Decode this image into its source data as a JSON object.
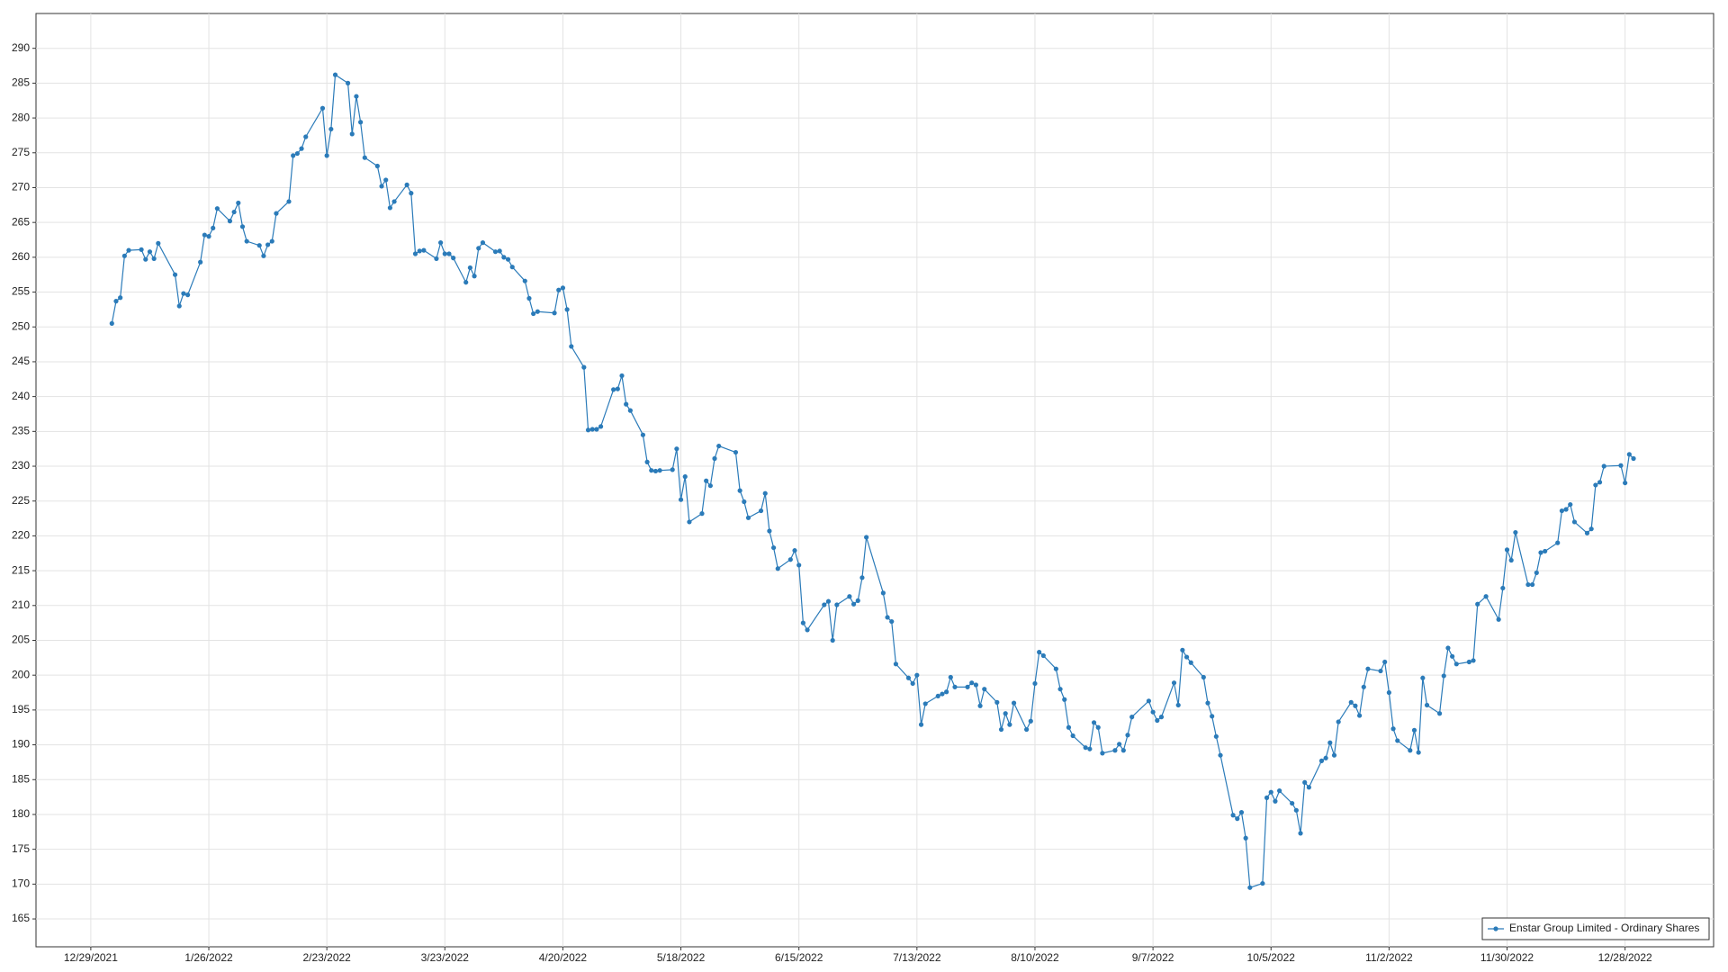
{
  "chart_data": {
    "type": "line",
    "x": [
      "2022-01-03",
      "2022-01-04",
      "2022-01-05",
      "2022-01-06",
      "2022-01-07",
      "2022-01-10",
      "2022-01-11",
      "2022-01-12",
      "2022-01-13",
      "2022-01-14",
      "2022-01-18",
      "2022-01-19",
      "2022-01-20",
      "2022-01-21",
      "2022-01-24",
      "2022-01-25",
      "2022-01-26",
      "2022-01-27",
      "2022-01-28",
      "2022-01-31",
      "2022-02-01",
      "2022-02-02",
      "2022-02-03",
      "2022-02-04",
      "2022-02-07",
      "2022-02-08",
      "2022-02-09",
      "2022-02-10",
      "2022-02-11",
      "2022-02-14",
      "2022-02-15",
      "2022-02-16",
      "2022-02-17",
      "2022-02-18",
      "2022-02-22",
      "2022-02-23",
      "2022-02-24",
      "2022-02-25",
      "2022-02-28",
      "2022-03-01",
      "2022-03-02",
      "2022-03-03",
      "2022-03-04",
      "2022-03-07",
      "2022-03-08",
      "2022-03-09",
      "2022-03-10",
      "2022-03-11",
      "2022-03-14",
      "2022-03-15",
      "2022-03-16",
      "2022-03-17",
      "2022-03-18",
      "2022-03-21",
      "2022-03-22",
      "2022-03-23",
      "2022-03-24",
      "2022-03-25",
      "2022-03-28",
      "2022-03-29",
      "2022-03-30",
      "2022-03-31",
      "2022-04-01",
      "2022-04-04",
      "2022-04-05",
      "2022-04-06",
      "2022-04-07",
      "2022-04-08",
      "2022-04-11",
      "2022-04-12",
      "2022-04-13",
      "2022-04-14",
      "2022-04-18",
      "2022-04-19",
      "2022-04-20",
      "2022-04-21",
      "2022-04-22",
      "2022-04-25",
      "2022-04-26",
      "2022-04-27",
      "2022-04-28",
      "2022-04-29",
      "2022-05-02",
      "2022-05-03",
      "2022-05-04",
      "2022-05-05",
      "2022-05-06",
      "2022-05-09",
      "2022-05-10",
      "2022-05-11",
      "2022-05-12",
      "2022-05-13",
      "2022-05-16",
      "2022-05-17",
      "2022-05-18",
      "2022-05-19",
      "2022-05-20",
      "2022-05-23",
      "2022-05-24",
      "2022-05-25",
      "2022-05-26",
      "2022-05-27",
      "2022-05-31",
      "2022-06-01",
      "2022-06-02",
      "2022-06-03",
      "2022-06-06",
      "2022-06-07",
      "2022-06-08",
      "2022-06-09",
      "2022-06-10",
      "2022-06-13",
      "2022-06-14",
      "2022-06-15",
      "2022-06-16",
      "2022-06-17",
      "2022-06-21",
      "2022-06-22",
      "2022-06-23",
      "2022-06-24",
      "2022-06-27",
      "2022-06-28",
      "2022-06-29",
      "2022-06-30",
      "2022-07-01",
      "2022-07-05",
      "2022-07-06",
      "2022-07-07",
      "2022-07-08",
      "2022-07-11",
      "2022-07-12",
      "2022-07-13",
      "2022-07-14",
      "2022-07-15",
      "2022-07-18",
      "2022-07-19",
      "2022-07-20",
      "2022-07-21",
      "2022-07-22",
      "2022-07-25",
      "2022-07-26",
      "2022-07-27",
      "2022-07-28",
      "2022-07-29",
      "2022-08-01",
      "2022-08-02",
      "2022-08-03",
      "2022-08-04",
      "2022-08-05",
      "2022-08-08",
      "2022-08-09",
      "2022-08-10",
      "2022-08-11",
      "2022-08-12",
      "2022-08-15",
      "2022-08-16",
      "2022-08-17",
      "2022-08-18",
      "2022-08-19",
      "2022-08-22",
      "2022-08-23",
      "2022-08-24",
      "2022-08-25",
      "2022-08-26",
      "2022-08-29",
      "2022-08-30",
      "2022-08-31",
      "2022-09-01",
      "2022-09-02",
      "2022-09-06",
      "2022-09-07",
      "2022-09-08",
      "2022-09-09",
      "2022-09-12",
      "2022-09-13",
      "2022-09-14",
      "2022-09-15",
      "2022-09-16",
      "2022-09-19",
      "2022-09-20",
      "2022-09-21",
      "2022-09-22",
      "2022-09-23",
      "2022-09-26",
      "2022-09-27",
      "2022-09-28",
      "2022-09-29",
      "2022-09-30",
      "2022-10-03",
      "2022-10-04",
      "2022-10-05",
      "2022-10-06",
      "2022-10-07",
      "2022-10-10",
      "2022-10-11",
      "2022-10-12",
      "2022-10-13",
      "2022-10-14",
      "2022-10-17",
      "2022-10-18",
      "2022-10-19",
      "2022-10-20",
      "2022-10-21",
      "2022-10-24",
      "2022-10-25",
      "2022-10-26",
      "2022-10-27",
      "2022-10-28",
      "2022-10-31",
      "2022-11-01",
      "2022-11-02",
      "2022-11-03",
      "2022-11-04",
      "2022-11-07",
      "2022-11-08",
      "2022-11-09",
      "2022-11-10",
      "2022-11-11",
      "2022-11-14",
      "2022-11-15",
      "2022-11-16",
      "2022-11-17",
      "2022-11-18",
      "2022-11-21",
      "2022-11-22",
      "2022-11-23",
      "2022-11-25",
      "2022-11-28",
      "2022-11-29",
      "2022-11-30",
      "2022-12-01",
      "2022-12-02",
      "2022-12-05",
      "2022-12-06",
      "2022-12-07",
      "2022-12-08",
      "2022-12-09",
      "2022-12-12",
      "2022-12-13",
      "2022-12-14",
      "2022-12-15",
      "2022-12-16",
      "2022-12-19",
      "2022-12-20",
      "2022-12-21",
      "2022-12-22",
      "2022-12-23",
      "2022-12-27",
      "2022-12-28",
      "2022-12-29",
      "2022-12-30"
    ],
    "series": [
      {
        "name": "Enstar Group Limited - Ordinary Shares",
        "color": "#2b7bb9",
        "values": [
          250.5,
          253.7,
          254.2,
          260.2,
          261,
          261.1,
          259.7,
          260.8,
          259.8,
          262,
          257.5,
          253,
          254.8,
          254.6,
          259.3,
          263.2,
          263,
          264.2,
          267,
          265.2,
          266.5,
          267.8,
          264.4,
          262.3,
          261.7,
          260.2,
          261.8,
          262.3,
          266.3,
          268,
          274.6,
          274.9,
          275.6,
          277.3,
          281.4,
          274.6,
          278.4,
          286.2,
          285,
          277.7,
          283.1,
          279.4,
          274.3,
          273.1,
          270.2,
          271.1,
          267.1,
          268,
          270.4,
          269.2,
          260.5,
          260.9,
          261,
          259.8,
          262.1,
          260.5,
          260.5,
          259.9,
          256.4,
          258.5,
          257.3,
          261.3,
          262.1,
          260.8,
          260.9,
          260,
          259.7,
          258.6,
          256.6,
          254.1,
          251.9,
          252.2,
          252,
          255.3,
          255.6,
          252.5,
          247.2,
          244.2,
          235.2,
          235.3,
          235.3,
          235.7,
          241,
          241.1,
          243,
          238.9,
          238,
          234.5,
          230.6,
          229.4,
          229.3,
          229.4,
          229.5,
          232.5,
          225.2,
          228.5,
          222,
          223.2,
          227.9,
          227.2,
          231.1,
          232.9,
          232,
          226.5,
          224.9,
          222.6,
          223.6,
          226.1,
          220.7,
          218.3,
          215.3,
          216.6,
          217.9,
          215.8,
          207.5,
          206.5,
          210.1,
          210.6,
          205,
          210.1,
          211.3,
          210.2,
          210.7,
          214,
          219.8,
          211.8,
          208.3,
          207.7,
          201.6,
          199.6,
          198.8,
          200,
          192.9,
          195.9,
          197,
          197.3,
          197.6,
          199.7,
          198.3,
          198.3,
          198.9,
          198.6,
          195.6,
          198,
          196.1,
          192.2,
          194.5,
          192.9,
          196,
          192.2,
          193.4,
          198.8,
          203.3,
          202.8,
          200.9,
          198,
          196.5,
          192.5,
          191.3,
          189.6,
          189.4,
          193.2,
          192.5,
          188.8,
          189.2,
          190.1,
          189.2,
          191.4,
          194,
          196.3,
          194.7,
          193.5,
          194,
          198.9,
          195.7,
          203.6,
          202.6,
          201.8,
          199.7,
          196,
          194.1,
          191.2,
          188.5,
          179.9,
          179.4,
          180.3,
          176.6,
          169.5,
          170.1,
          182.4,
          183.2,
          181.9,
          183.4,
          181.6,
          180.6,
          177.3,
          184.6,
          183.9,
          187.7,
          188.1,
          190.3,
          188.5,
          193.3,
          196.1,
          195.6,
          194.2,
          198.3,
          200.9,
          200.6,
          201.9,
          197.5,
          192.3,
          190.6,
          189.2,
          192.1,
          188.9,
          199.6,
          195.7,
          194.5,
          199.9,
          203.9,
          202.7,
          201.6,
          201.9,
          202.1,
          210.2,
          211.3,
          208,
          212.5,
          218,
          216.5,
          220.5,
          213,
          213,
          214.7,
          217.6,
          217.8,
          219,
          223.6,
          223.8,
          224.5,
          222,
          220.4,
          221,
          227.3,
          227.7,
          230,
          230.1,
          227.6,
          231.7,
          231.1
        ]
      }
    ],
    "xlim": [
      "2021-12-16",
      "2023-01-18"
    ],
    "ylim": [
      161,
      295
    ],
    "xticks": [
      {
        "value": "2021-12-29",
        "label": "12/29/2021"
      },
      {
        "value": "2022-01-26",
        "label": "1/26/2022"
      },
      {
        "value": "2022-02-23",
        "label": "2/23/2022"
      },
      {
        "value": "2022-03-23",
        "label": "3/23/2022"
      },
      {
        "value": "2022-04-20",
        "label": "4/20/2022"
      },
      {
        "value": "2022-05-18",
        "label": "5/18/2022"
      },
      {
        "value": "2022-06-15",
        "label": "6/15/2022"
      },
      {
        "value": "2022-07-13",
        "label": "7/13/2022"
      },
      {
        "value": "2022-08-10",
        "label": "8/10/2022"
      },
      {
        "value": "2022-09-07",
        "label": "9/7/2022"
      },
      {
        "value": "2022-10-05",
        "label": "10/5/2022"
      },
      {
        "value": "2022-11-02",
        "label": "11/2/2022"
      },
      {
        "value": "2022-11-30",
        "label": "11/30/2022"
      },
      {
        "value": "2022-12-28",
        "label": "12/28/2022"
      }
    ],
    "yticks": [
      165,
      170,
      175,
      180,
      185,
      190,
      195,
      200,
      205,
      210,
      215,
      220,
      225,
      230,
      235,
      240,
      245,
      250,
      255,
      260,
      265,
      270,
      275,
      280,
      285,
      290
    ],
    "grid": true,
    "legend": "lower-right"
  }
}
